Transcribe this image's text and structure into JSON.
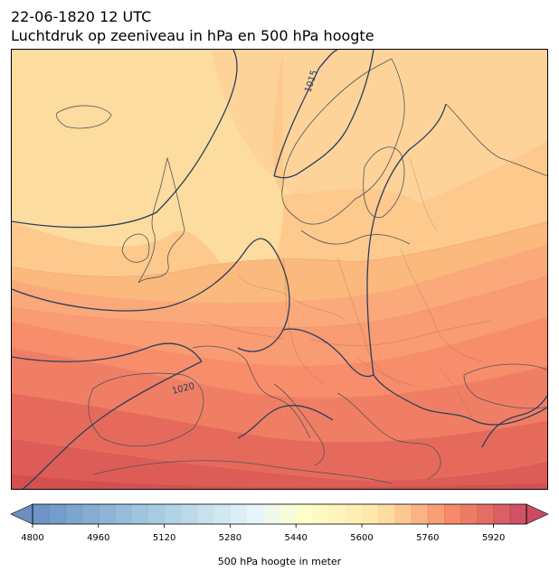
{
  "title": {
    "line1": "22-06-1820 12 UTC",
    "line2": "Luchtdruk op zeeniveau in hPa en 500 hPa hoogte"
  },
  "map": {
    "isobar_labels": [
      "1015",
      "1020"
    ],
    "contour_field": "500 hPa geopotential height",
    "line_field": "mean sea level pressure"
  },
  "colorbar": {
    "label": "500 hPa hoogte in meter",
    "min": 4800,
    "max": 6000,
    "step": 40,
    "ticks": [
      "4800",
      "4960",
      "5120",
      "5280",
      "5440",
      "5600",
      "5760",
      "5920"
    ],
    "colormap": "RdYlBu_r",
    "extend": "both"
  }
}
